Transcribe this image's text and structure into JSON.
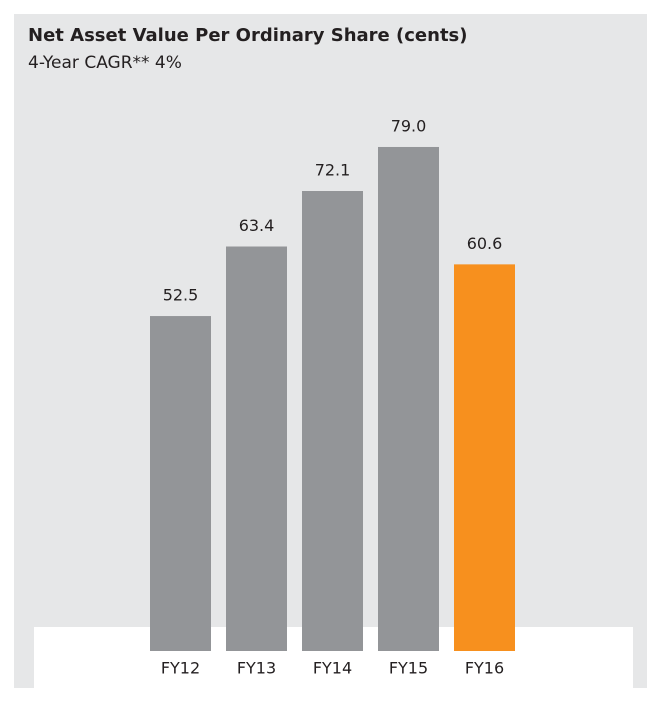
{
  "chart_data": {
    "type": "bar",
    "title": "Net Asset Value Per Ordinary Share (cents)",
    "subtitle": "4-Year CAGR** 4%",
    "categories": [
      "FY12",
      "FY13",
      "FY14",
      "FY15",
      "FY16"
    ],
    "values": [
      52.5,
      63.4,
      72.1,
      79,
      60.6
    ],
    "value_labels": [
      "52.5",
      "63.4",
      "72.1",
      "79.0",
      "60.6"
    ],
    "colors": [
      "#939598",
      "#939598",
      "#939598",
      "#939598",
      "#f7901e"
    ]
  }
}
